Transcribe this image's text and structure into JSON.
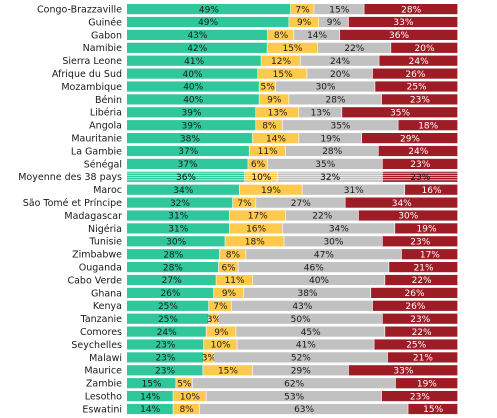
{
  "colors": {
    "segment_1": "#2fc79b",
    "segment_2": "#ffc94d",
    "segment_3": "#c1c1c1",
    "segment_4": "#9e1c26",
    "text_dark": "#1a1a1a",
    "text_light": "#ffffff"
  },
  "chart_data": {
    "type": "bar",
    "orientation": "horizontal",
    "stacked": true,
    "unit": "%",
    "categories": [
      "Congo-Brazzaville",
      "Guinée",
      "Gabon",
      "Namibie",
      "Sierra Leone",
      "Afrique du Sud",
      "Mozambique",
      "Bénin",
      "Libéria",
      "Angola",
      "Mauritanie",
      "La Gambie",
      "Sénégal",
      "Moyenne des 38 pays",
      "Maroc",
      "São Tomé et Príncipe",
      "Madagascar",
      "Nigéria",
      "Tunisie",
      "Zimbabwe",
      "Ouganda",
      "Cabo Verde",
      "Ghana",
      "Kenya",
      "Tanzanie",
      "Comores",
      "Seychelles",
      "Malawi",
      "Maurice",
      "Zambie",
      "Lesotho",
      "Eswatini"
    ],
    "highlight_category": "Moyenne des 38 pays",
    "series": [
      {
        "values": [
          49,
          49,
          43,
          42,
          41,
          40,
          40,
          40,
          39,
          39,
          38,
          37,
          37,
          36,
          34,
          32,
          31,
          31,
          30,
          28,
          28,
          27,
          26,
          25,
          25,
          24,
          23,
          23,
          23,
          15,
          14,
          14
        ]
      },
      {
        "values": [
          7,
          9,
          8,
          15,
          12,
          15,
          5,
          9,
          13,
          8,
          14,
          11,
          6,
          10,
          19,
          7,
          17,
          16,
          18,
          8,
          6,
          11,
          9,
          7,
          3,
          9,
          10,
          3,
          15,
          5,
          10,
          8
        ]
      },
      {
        "values": [
          15,
          9,
          14,
          22,
          24,
          20,
          30,
          28,
          13,
          35,
          19,
          28,
          35,
          32,
          31,
          27,
          22,
          34,
          30,
          47,
          46,
          40,
          38,
          43,
          50,
          45,
          41,
          52,
          29,
          62,
          53,
          63
        ]
      },
      {
        "values": [
          28,
          33,
          36,
          20,
          24,
          26,
          25,
          23,
          35,
          18,
          29,
          24,
          23,
          23,
          16,
          34,
          30,
          19,
          23,
          17,
          21,
          22,
          26,
          26,
          23,
          22,
          25,
          21,
          33,
          19,
          23,
          15
        ]
      }
    ]
  }
}
